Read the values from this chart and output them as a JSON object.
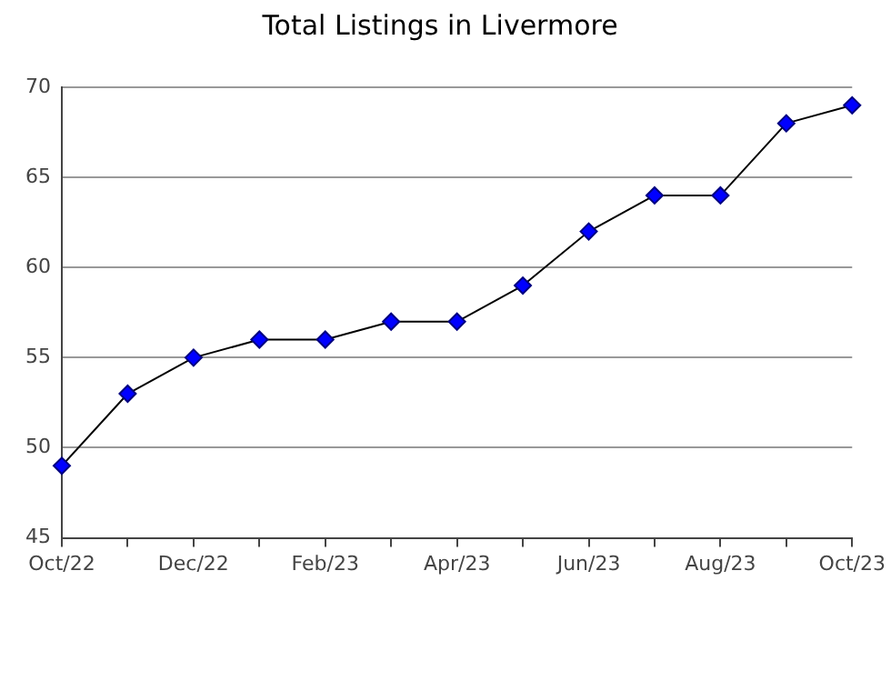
{
  "chart_data": {
    "type": "line",
    "title": "Total Listings in Livermore",
    "categories": [
      "Oct/22",
      null,
      "Dec/22",
      null,
      "Feb/23",
      null,
      "Apr/23",
      null,
      "Jun/23",
      null,
      "Aug/23",
      null,
      "Oct/23"
    ],
    "series": [
      {
        "color": "#0000ff",
        "values": [
          49,
          53,
          55,
          56,
          56,
          57,
          57,
          59,
          62,
          64,
          64,
          68,
          69
        ]
      }
    ],
    "ylim": [
      45,
      70
    ],
    "yticks": [
      45,
      50,
      55,
      60,
      65,
      70
    ],
    "grid": "y",
    "legend": false,
    "marker": "diamond",
    "line_style": "solid"
  }
}
